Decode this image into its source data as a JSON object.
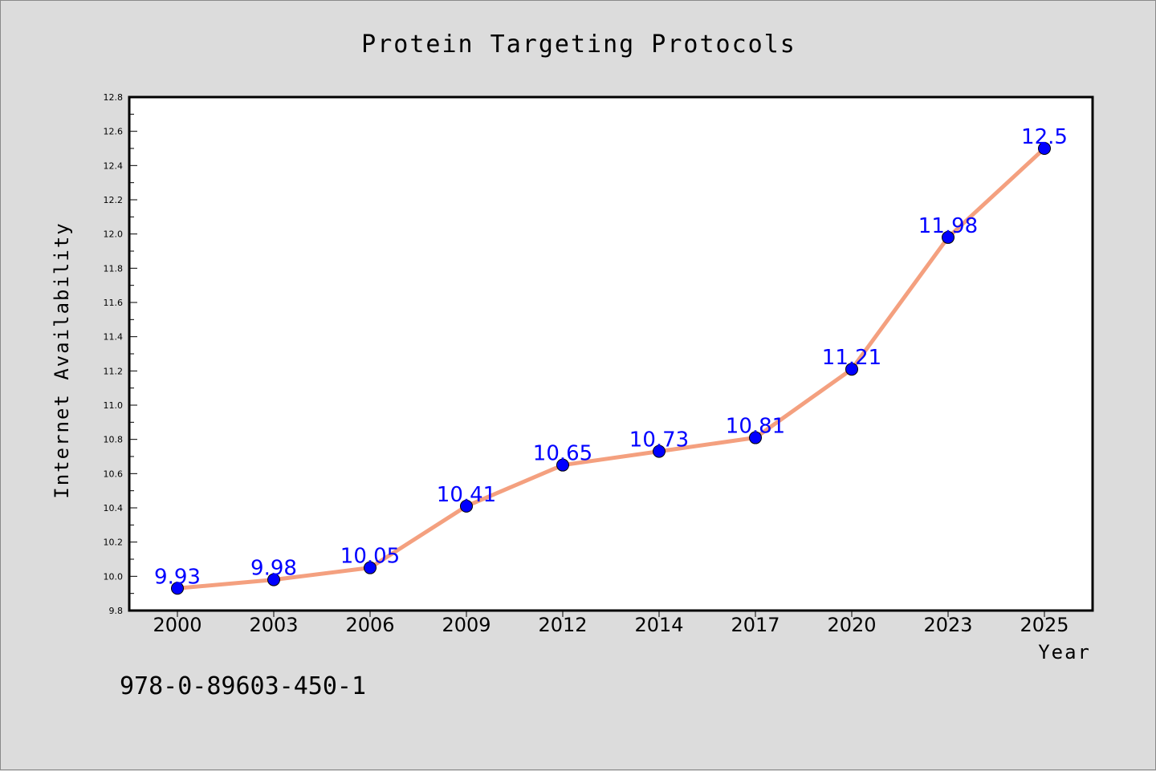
{
  "chart_data": {
    "type": "line",
    "title": "Protein Targeting Protocols",
    "xlabel": "Year",
    "ylabel": "Internet Availability",
    "categories": [
      "2000",
      "2003",
      "2006",
      "2009",
      "2012",
      "2014",
      "2017",
      "2020",
      "2023",
      "2025"
    ],
    "series": [
      {
        "values": [
          9.93,
          9.98,
          10.05,
          10.41,
          10.65,
          10.73,
          10.81,
          11.21,
          11.98,
          12.5
        ],
        "data_labels": [
          "9.93",
          "9.98",
          "10.05",
          "10.41",
          "10.65",
          "10.73",
          "10.81",
          "11.21",
          "11.98",
          "12.5"
        ]
      }
    ],
    "ylim": [
      9.8,
      12.8
    ],
    "yticks": [
      "9.8",
      "10.0",
      "10.2",
      "10.4",
      "10.6",
      "10.8",
      "11.0",
      "11.2",
      "11.4",
      "11.6",
      "11.8",
      "12.0",
      "12.2",
      "12.4",
      "12.6",
      "12.8"
    ],
    "grid": false,
    "legend": "none",
    "colors": {
      "line": "#f4a07f",
      "marker": "#0000ff",
      "data_label": "#0000ff",
      "background": "#dcdcdc"
    }
  },
  "footer_text": "978-0-89603-450-1"
}
